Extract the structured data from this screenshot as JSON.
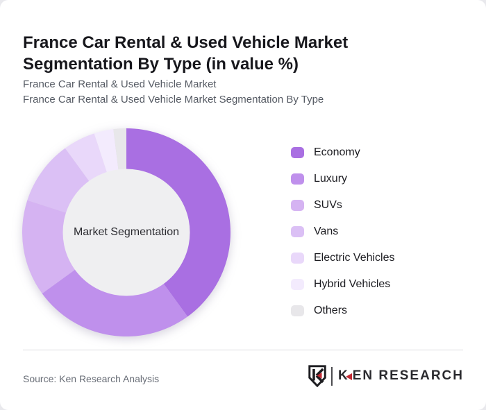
{
  "header": {
    "title": "France Car Rental & Used Vehicle Market Segmentation By Type (in value %)",
    "subtitle_line1": "France Car Rental & Used Vehicle Market",
    "subtitle_line2": "France Car Rental & Used Vehicle Market Segmentation By Type"
  },
  "chart_data": {
    "type": "pie",
    "subtype": "donut",
    "title": "France Car Rental & Used Vehicle Market Segmentation By Type (in value %)",
    "unit": "value %",
    "center_label": "Market Segmentation",
    "center_fill": "#efeff1",
    "start_angle_deg": 0,
    "direction": "clockwise",
    "legend_position": "right",
    "series": [
      {
        "name": "Economy",
        "value": 40,
        "color": "#a96fe2"
      },
      {
        "name": "Luxury",
        "value": 25,
        "color": "#bf90ec"
      },
      {
        "name": "SUVs",
        "value": 15,
        "color": "#d5b3f2"
      },
      {
        "name": "Vans",
        "value": 10,
        "color": "#dbc0f5"
      },
      {
        "name": "Electric Vehicles",
        "value": 5,
        "color": "#e9d8fa"
      },
      {
        "name": "Hybrid Vehicles",
        "value": 3,
        "color": "#f3ebfd"
      },
      {
        "name": "Others",
        "value": 2,
        "color": "#e8e7ea"
      }
    ]
  },
  "footer": {
    "source": "Source: Ken Research Analysis",
    "logo": {
      "shield_letter": "K",
      "text_k": "K",
      "text_rest": "EN RESEARCH",
      "accent_color": "#c22a33",
      "ink_color": "#1d1d21"
    }
  }
}
